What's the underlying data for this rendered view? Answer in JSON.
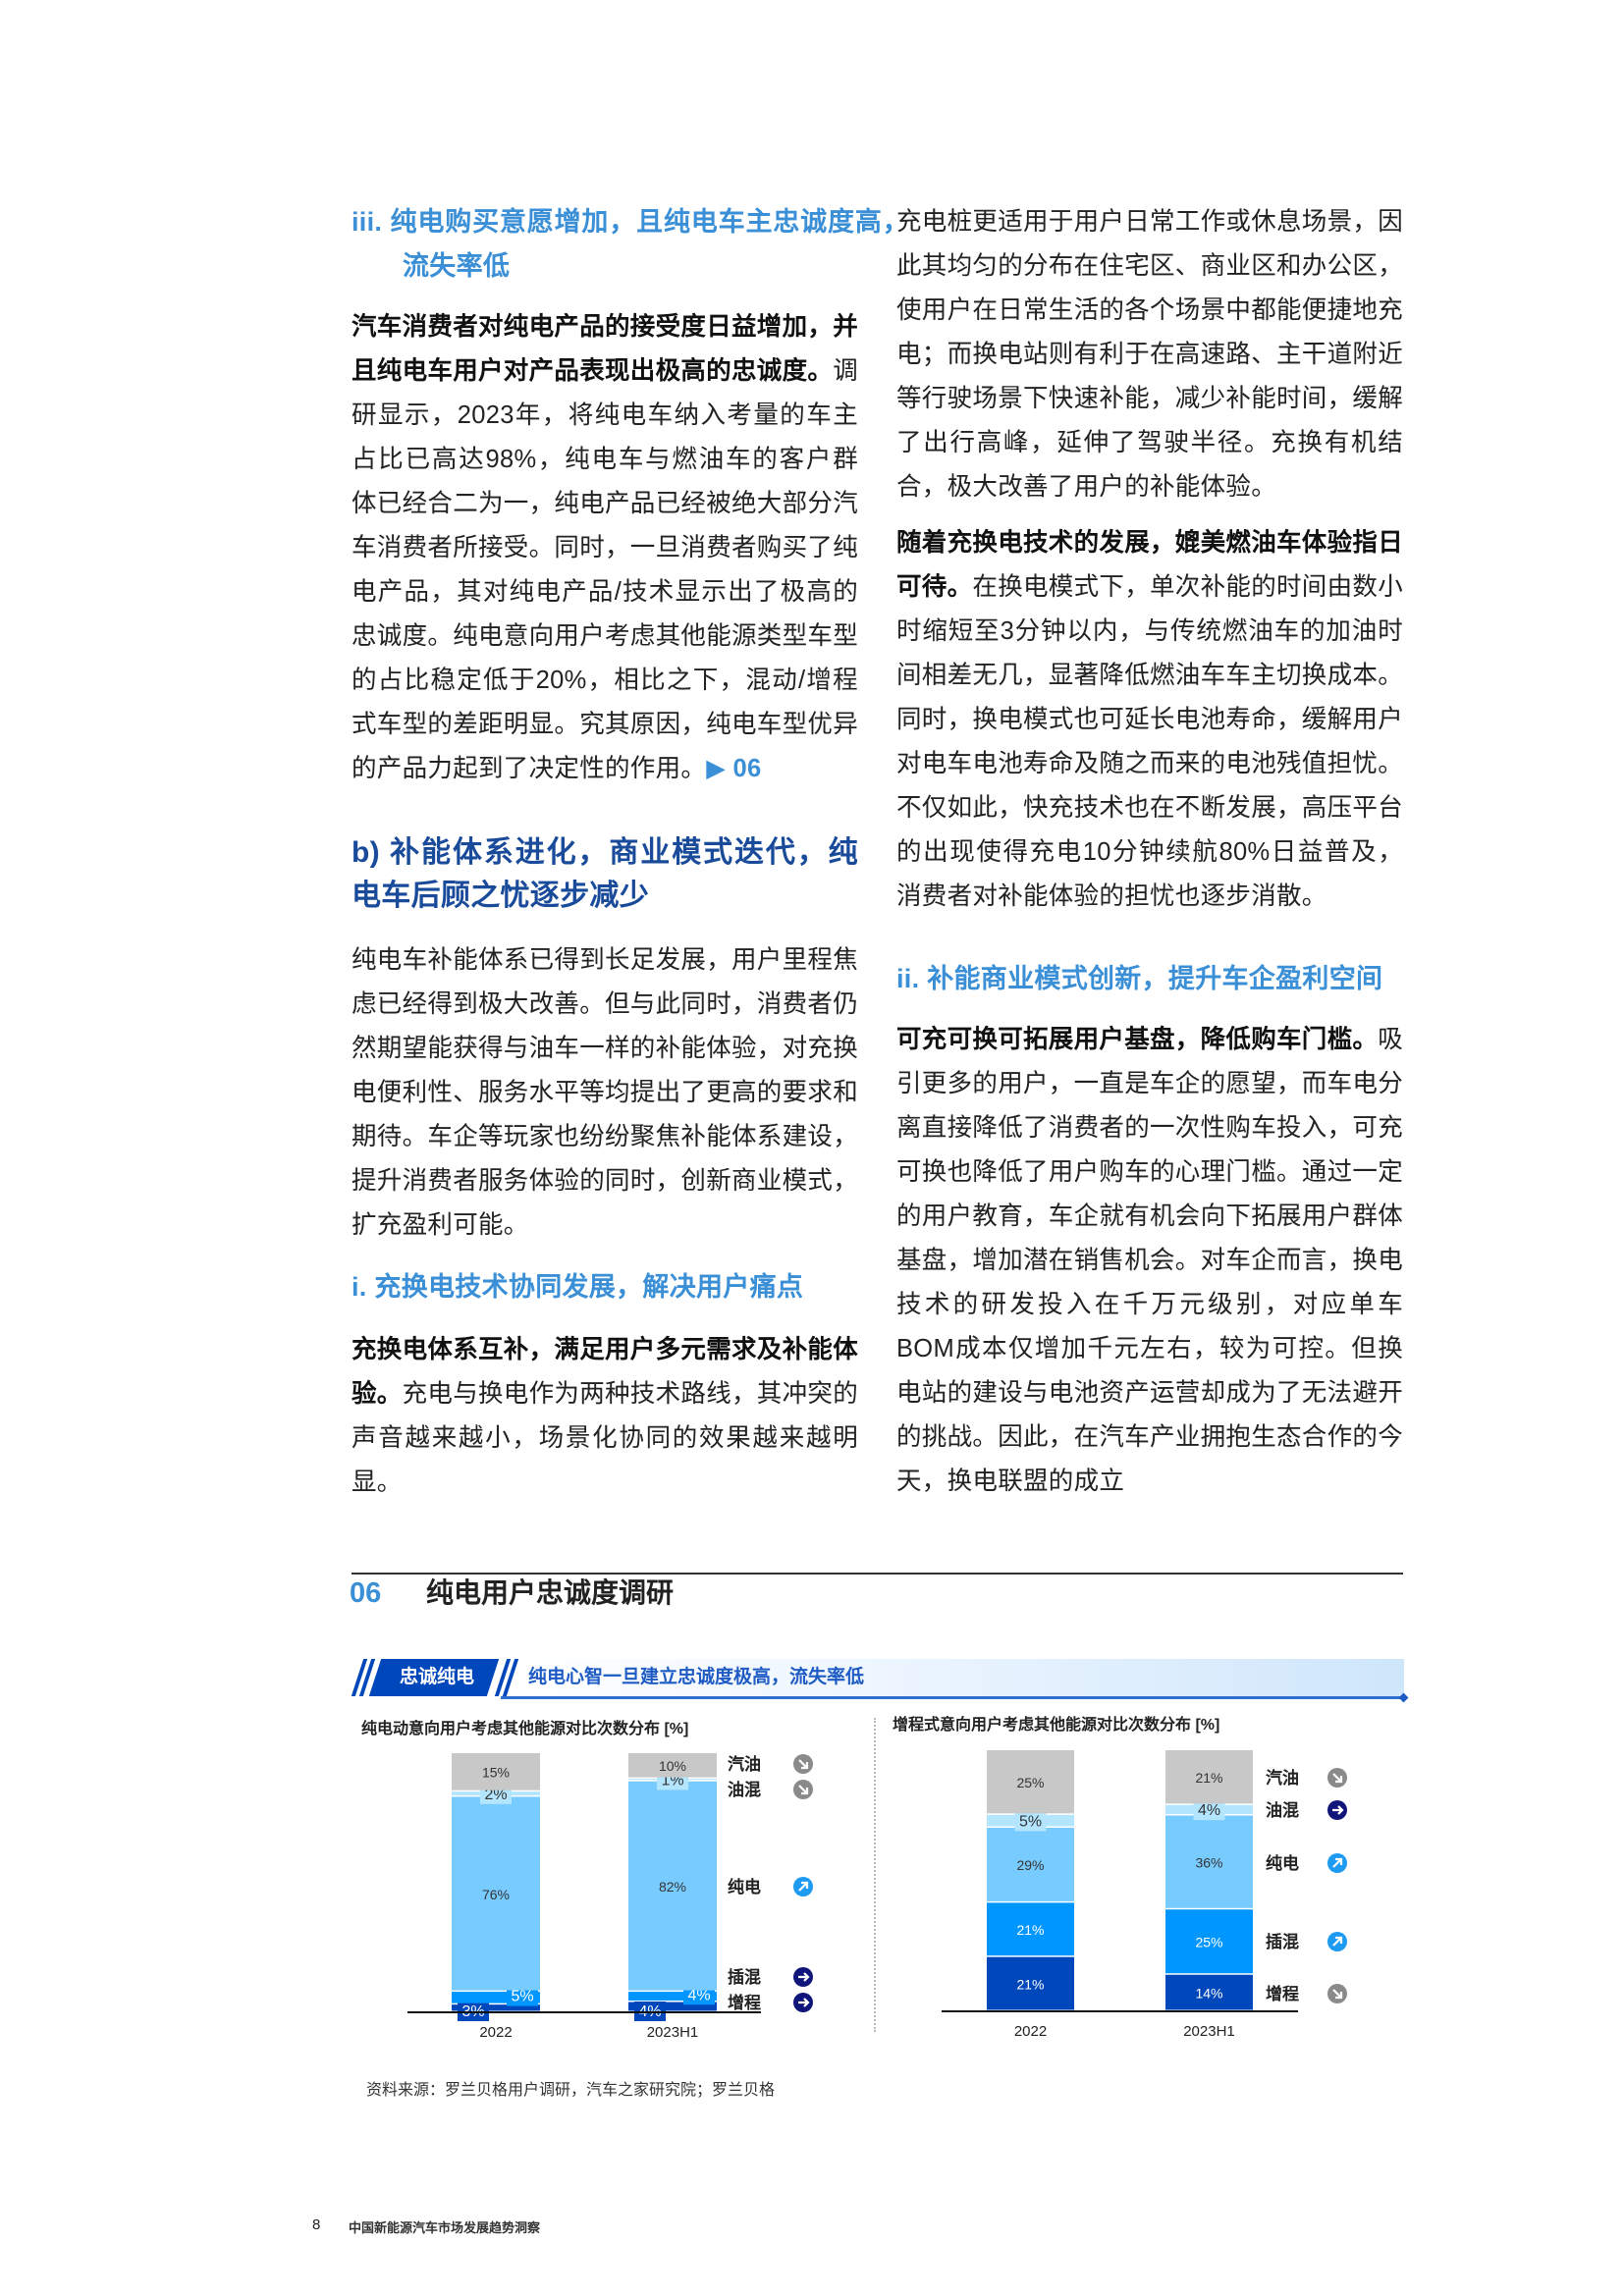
{
  "left_column": {
    "heading_iii": "iii. 纯电购买意愿增加，且纯电车主忠诚度高，流失率低",
    "p1_bold": "汽车消费者对纯电产品的接受度日益增加，并且纯电车用户对产品表现出极高的忠诚度。",
    "p1_text": "调研显示，2023年，将纯电车纳入考量的车主占比已高达98%，纯电车与燃油车的客户群体已经合二为一，纯电产品已经被绝大部分汽车消费者所接受。同时，一旦消费者购买了纯电产品，其对纯电产品/技术显示出了极高的忠诚度。纯电意向用户考虑其他能源类型车型的占比稳定低于20%，相比之下，混动/增程式车型的差距明显。究其原因，纯电车型优异的产品力起到了决定性的作用。",
    "p1_ref": "▶ 06",
    "heading_b": "b) 补能体系进化，商业模式迭代，纯电车后顾之忧逐步减少",
    "p2_text": "纯电车补能体系已得到长足发展，用户里程焦虑已经得到极大改善。但与此同时，消费者仍然期望能获得与油车一样的补能体验，对充换电便利性、服务水平等均提出了更高的要求和期待。车企等玩家也纷纷聚焦补能体系建设，提升消费者服务体验的同时，创新商业模式，扩充盈利可能。",
    "heading_i": "i. 充换电技术协同发展，解决用户痛点",
    "p3_bold": "充换电体系互补，满足用户多元需求及补能体验。",
    "p3_text": "充电与换电作为两种技术路线，其冲突的声音越来越小，场景化协同的效果越来越明显。"
  },
  "right_column": {
    "p4_text": "充电桩更适用于用户日常工作或休息场景，因此其均匀的分布在住宅区、商业区和办公区，使用户在日常生活的各个场景中都能便捷地充电；而换电站则有利于在高速路、主干道附近等行驶场景下快速补能，减少补能时间，缓解了出行高峰，延伸了驾驶半径。充换有机结合，极大改善了用户的补能体验。",
    "p5_bold": "随着充换电技术的发展，媲美燃油车体验指日可待。",
    "p5_text": "在换电模式下，单次补能的时间由数小时缩短至3分钟以内，与传统燃油车的加油时间相差无几，显著降低燃油车车主切换成本。同时，换电模式也可延长电池寿命，缓解用户对电车电池寿命及随之而来的电池残值担忧。不仅如此，快充技术也在不断发展，高压平台的出现使得充电10分钟续航80%日益普及，消费者对补能体验的担忧也逐步消散。",
    "heading_ii": "ii. 补能商业模式创新，提升车企盈利空间",
    "p6_bold": "可充可换可拓展用户基盘，降低购车门槛。",
    "p6_text": "吸引更多的用户，一直是车企的愿望，而车电分离直接降低了消费者的一次性购车投入，可充可换也降低了用户购车的心理门槛。通过一定的用户教育，车企就有机会向下拓展用户群体基盘，增加潜在销售机会。对车企而言，换电技术的研发投入在千万元级别，对应单车BOM成本仅增加千元左右，较为可控。但换电站的建设与电池资产运营却成为了无法避开的挑战。因此，在汽车产业拥抱生态合作的今天，换电联盟的成立"
  },
  "figure": {
    "number": "06",
    "title": "纯电用户忠诚度调研",
    "badge": "忠诚纯电",
    "subtitle": "纯电心智一旦建立忠诚度极高，流失率低",
    "source": "资料来源：罗兰贝格用户调研，汽车之家研究院；罗兰贝格"
  },
  "colors": {
    "增程": "#0047BB",
    "插混": "#0096FF",
    "纯电": "#78CBFF",
    "油混": "#B3E5FF",
    "汽油": "#C8C8C8",
    "trend_down": "#8A8A8A",
    "trend_flat": "#10157A",
    "trend_up": "#1E9BF0"
  },
  "chart_data": [
    {
      "type": "bar",
      "stacked": true,
      "title": "纯电动意向用户考虑其他能源对比次数分布 [%]",
      "categories": [
        "2022",
        "2023H1"
      ],
      "series": [
        {
          "name": "增程",
          "values": [
            3,
            4
          ],
          "trend": "flat"
        },
        {
          "name": "插混",
          "values": [
            5,
            4
          ],
          "trend": "flat"
        },
        {
          "name": "纯电",
          "values": [
            76,
            82
          ],
          "trend": "up"
        },
        {
          "name": "油混",
          "values": [
            2,
            1
          ],
          "trend": "down"
        },
        {
          "name": "汽油",
          "values": [
            15,
            10
          ],
          "trend": "down"
        }
      ],
      "value_suffix": "%",
      "legend": "right"
    },
    {
      "type": "bar",
      "stacked": true,
      "title": "增程式意向用户考虑其他能源对比次数分布 [%]",
      "categories": [
        "2022",
        "2023H1"
      ],
      "series": [
        {
          "name": "增程",
          "values": [
            21,
            14
          ],
          "trend": "down"
        },
        {
          "name": "插混",
          "values": [
            21,
            25
          ],
          "trend": "up"
        },
        {
          "name": "纯电",
          "values": [
            29,
            36
          ],
          "trend": "up"
        },
        {
          "name": "油混",
          "values": [
            5,
            4
          ],
          "trend": "flat"
        },
        {
          "name": "汽油",
          "values": [
            25,
            21
          ],
          "trend": "down"
        }
      ],
      "value_suffix": "%",
      "legend": "right"
    }
  ],
  "footer": {
    "page_number": "8",
    "report_title": "中国新能源汽车市场发展趋势洞察"
  }
}
